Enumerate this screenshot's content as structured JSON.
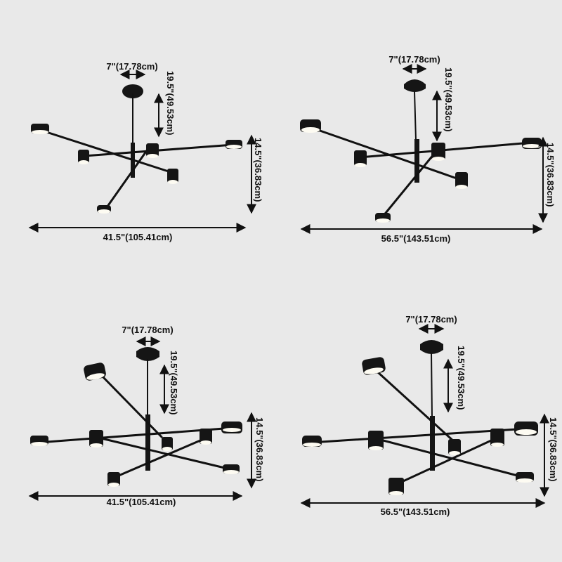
{
  "colors": {
    "background": "#e9e9e9",
    "fixture": "#151515",
    "light": "#fdfbf2",
    "dimension": "#111111"
  },
  "variants": [
    {
      "canopy_label": "7\"(17.78cm)",
      "drop_label": "19.5\"(49.53cm)",
      "height_label": "14.5\"(36.83cm)",
      "width_label": "41.5\"(105.41cm)",
      "lights": 6
    },
    {
      "canopy_label": "7\"(17.78cm)",
      "drop_label": "19.5\"(49.53cm)",
      "height_label": "14.5\"(36.83cm)",
      "width_label": "56.5\"(143.51cm)",
      "lights": 6
    },
    {
      "canopy_label": "7\"(17.78cm)",
      "drop_label": "19.5\"(49.53cm)",
      "height_label": "14.5\"(36.83cm)",
      "width_label": "41.5\"(105.41cm)",
      "lights": 8
    },
    {
      "canopy_label": "7\"(17.78cm)",
      "drop_label": "19.5\"(49.53cm)",
      "height_label": "14.5\"(36.83cm)",
      "width_label": "56.5\"(143.51cm)",
      "lights": 8
    }
  ]
}
